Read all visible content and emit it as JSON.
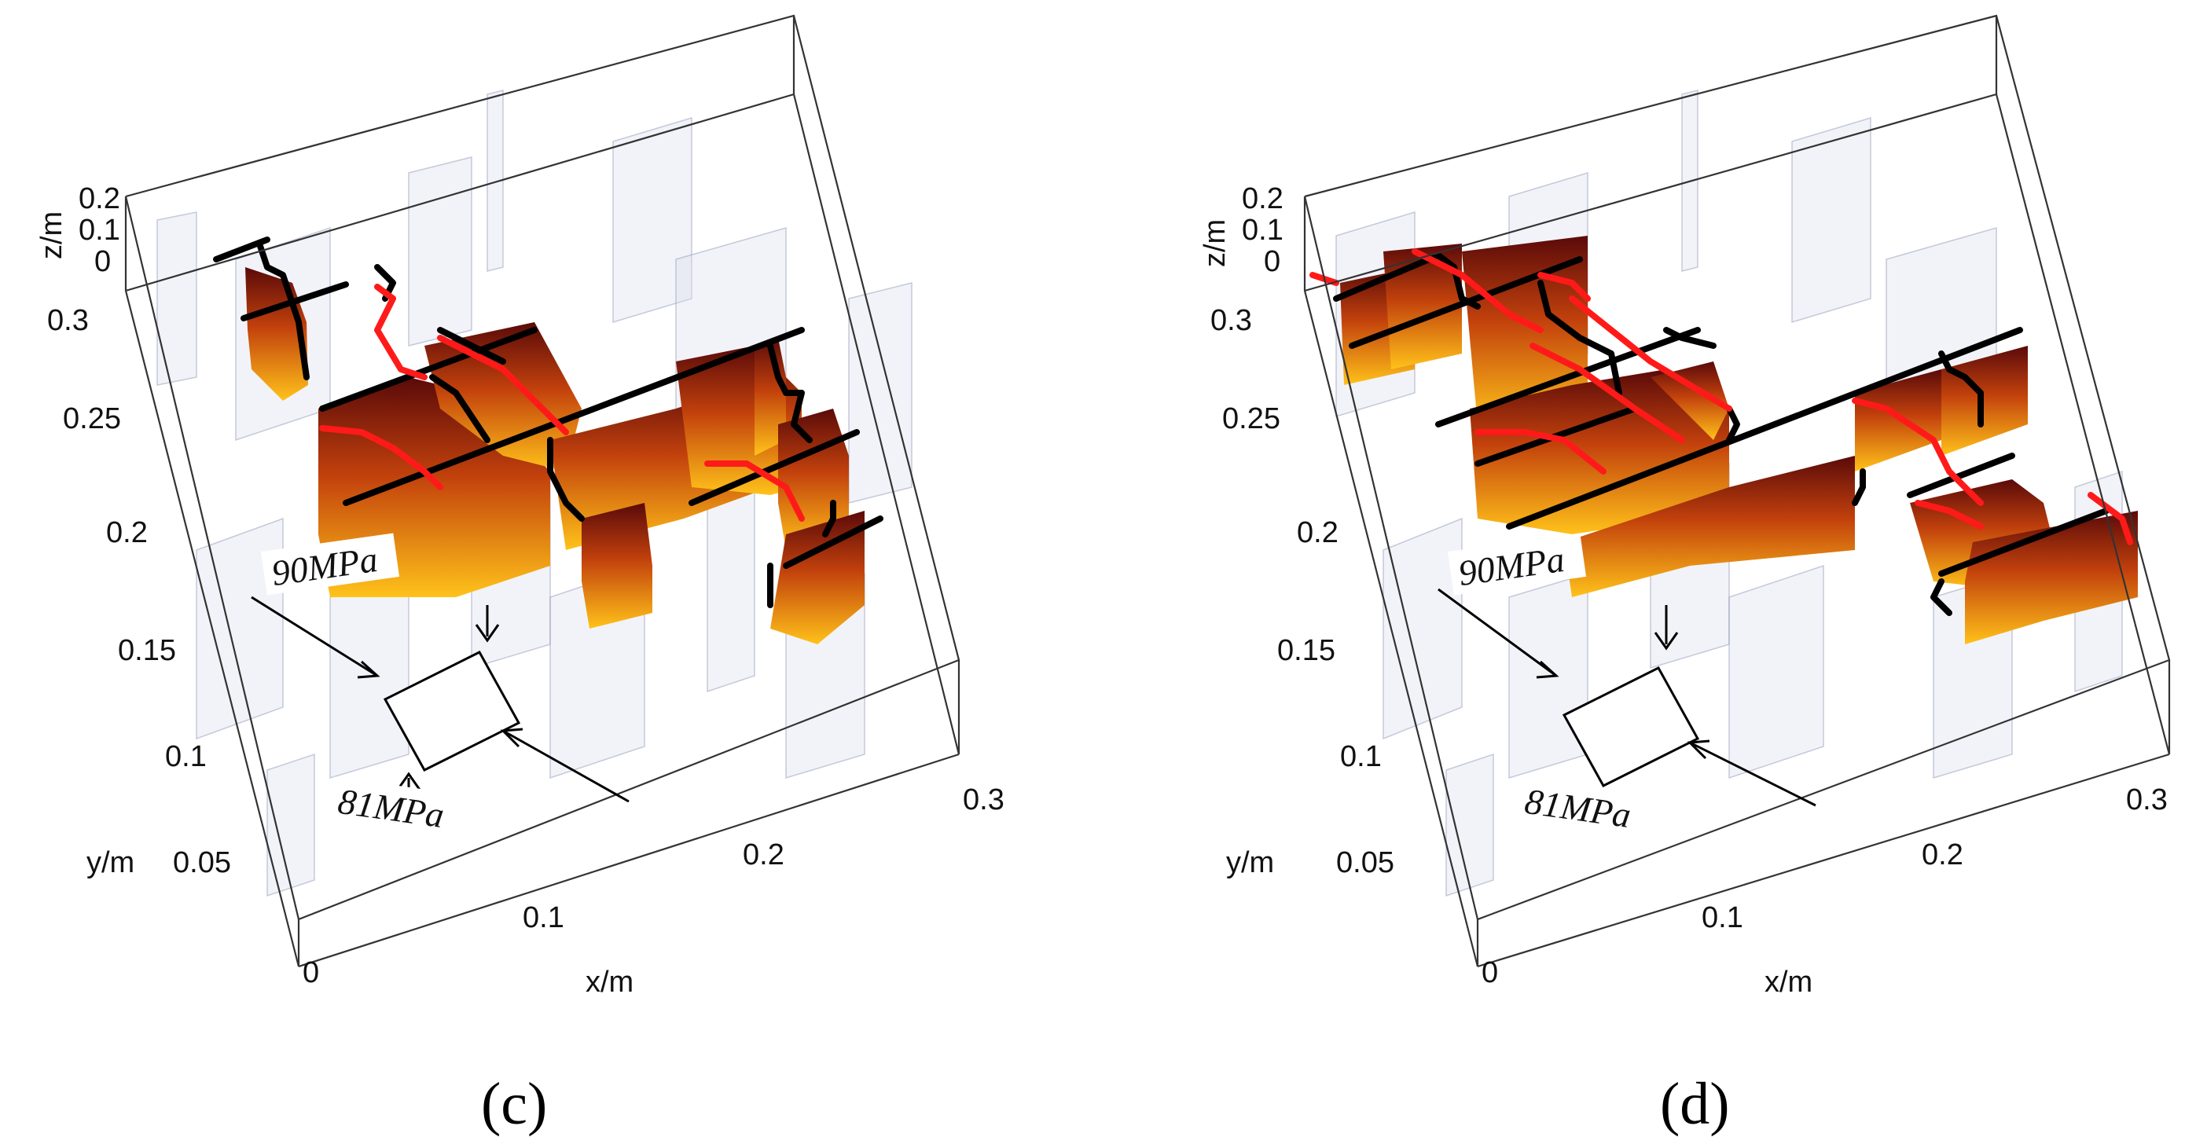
{
  "panels": [
    {
      "id": "c",
      "label": "(c)",
      "z_ticks": [
        "0.2",
        "0.1",
        "0"
      ],
      "z_label": "z/m",
      "y_ticks": [
        "0.3",
        "0.25",
        "0.2",
        "0.15",
        "0.1",
        "0.05"
      ],
      "y_label": "y/m",
      "x_ticks": [
        "0",
        "0.1",
        "0.2",
        "0.3"
      ],
      "x_label": "x/m",
      "stress_max": "90MPa",
      "stress_min": "81MPa"
    },
    {
      "id": "d",
      "label": "(d)",
      "z_ticks": [
        "0.2",
        "0.1",
        "0"
      ],
      "z_label": "z/m",
      "y_ticks": [
        "0.3",
        "0.25",
        "0.2",
        "0.15",
        "0.1",
        "0.05"
      ],
      "y_label": "y/m",
      "x_ticks": [
        "0",
        "0.1",
        "0.2",
        "0.3"
      ],
      "x_label": "x/m",
      "stress_max": "90MPa",
      "stress_min": "81MPa"
    }
  ],
  "colors": {
    "fracture_dark": "#5a0a0a",
    "fracture_mid": "#c2410c",
    "fracture_light": "#ffc21a",
    "trace_black": "#000000",
    "trace_red": "#ff1a1a"
  }
}
